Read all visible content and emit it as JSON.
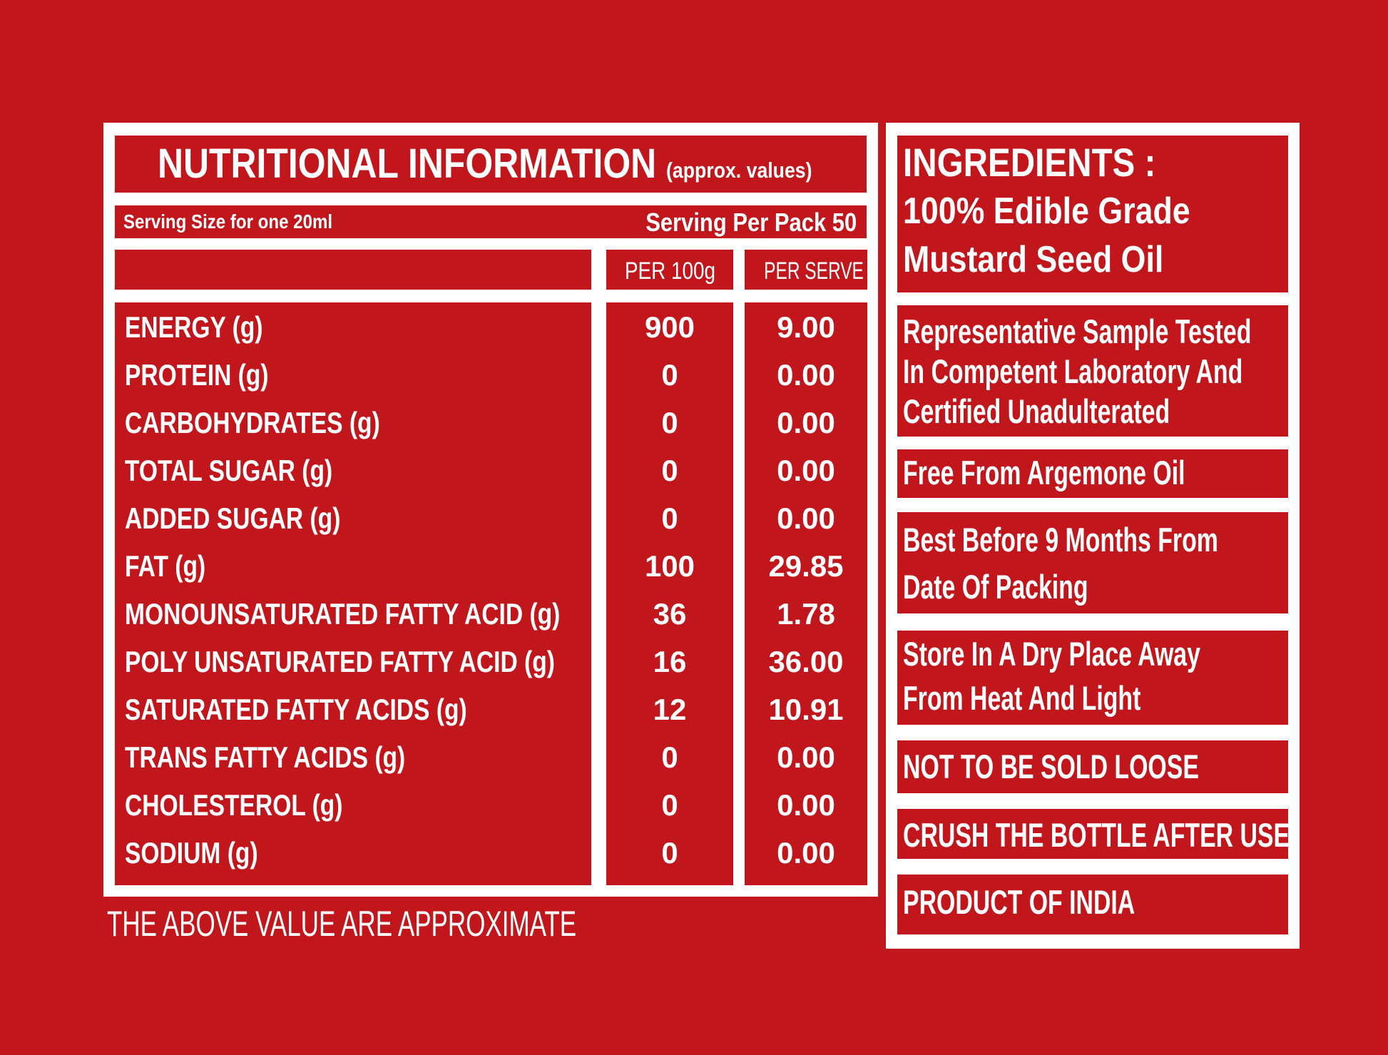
{
  "nutrition": {
    "title": "NUTRITIONAL INFORMATION",
    "subtitle": "(approx. values)",
    "serving_size": "Serving Size for one 20ml",
    "serving_per_pack": "Serving Per Pack 50",
    "col_per100": "PER 100g",
    "col_perserve": "PER SERVE",
    "rows": [
      {
        "label": "ENERGY (g)",
        "per100": "900",
        "perserve": "9.00"
      },
      {
        "label": "PROTEIN (g)",
        "per100": "0",
        "perserve": "0.00"
      },
      {
        "label": "CARBOHYDRATES (g)",
        "per100": "0",
        "perserve": "0.00"
      },
      {
        "label": "TOTAL SUGAR (g)",
        "per100": "0",
        "perserve": "0.00"
      },
      {
        "label": "ADDED SUGAR (g)",
        "per100": "0",
        "perserve": "0.00"
      },
      {
        "label": "FAT (g)",
        "per100": "100",
        "perserve": "29.85"
      },
      {
        "label": "MONOUNSATURATED FATTY ACID (g)",
        "per100": "36",
        "perserve": "1.78"
      },
      {
        "label": "POLY UNSATURATED FATTY ACID (g)",
        "per100": "16",
        "perserve": "36.00"
      },
      {
        "label": "SATURATED FATTY ACIDS (g)",
        "per100": "12",
        "perserve": "10.91"
      },
      {
        "label": "TRANS FATTY ACIDS (g)",
        "per100": "0",
        "perserve": "0.00"
      },
      {
        "label": "CHOLESTEROL (g)",
        "per100": "0",
        "perserve": "0.00"
      },
      {
        "label": "SODIUM (g)",
        "per100": "0",
        "perserve": "0.00"
      }
    ],
    "footnote": "THE ABOVE VALUE ARE APPROXIMATE"
  },
  "info": {
    "ingredients_title": "INGREDIENTS :",
    "ingredients_line1": "100% Edible Grade",
    "ingredients_line2": "Mustard Seed Oil",
    "tested_lines": [
      "Representative Sample Tested",
      "In Competent Laboratory And",
      "Certified Unadulterated"
    ],
    "argemone": "Free From Argemone Oil",
    "best_before_lines": [
      "Best Before  9 Months From",
      "Date Of Packing"
    ],
    "storage_lines": [
      "Store In A Dry Place Away",
      "From Heat And Light"
    ],
    "not_loose": "NOT TO BE SOLD LOOSE",
    "crush": "CRUSH THE BOTTLE AFTER USE",
    "origin": "PRODUCT OF INDIA"
  },
  "colors": {
    "background": "#c1161c",
    "panel": "#ffffff",
    "text": "#ffffff"
  }
}
